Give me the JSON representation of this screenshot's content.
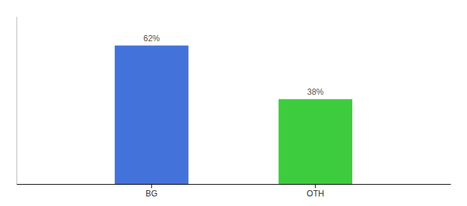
{
  "chart_data": {
    "type": "bar",
    "categories": [
      "BG",
      "OTH"
    ],
    "values": [
      62,
      38
    ],
    "value_labels": [
      "62%",
      "38%"
    ],
    "colors": [
      "#4472db",
      "#3dcc3d"
    ],
    "ylim": [
      0,
      75
    ],
    "grid": false,
    "data_labels": true,
    "tick_labels": "x"
  }
}
